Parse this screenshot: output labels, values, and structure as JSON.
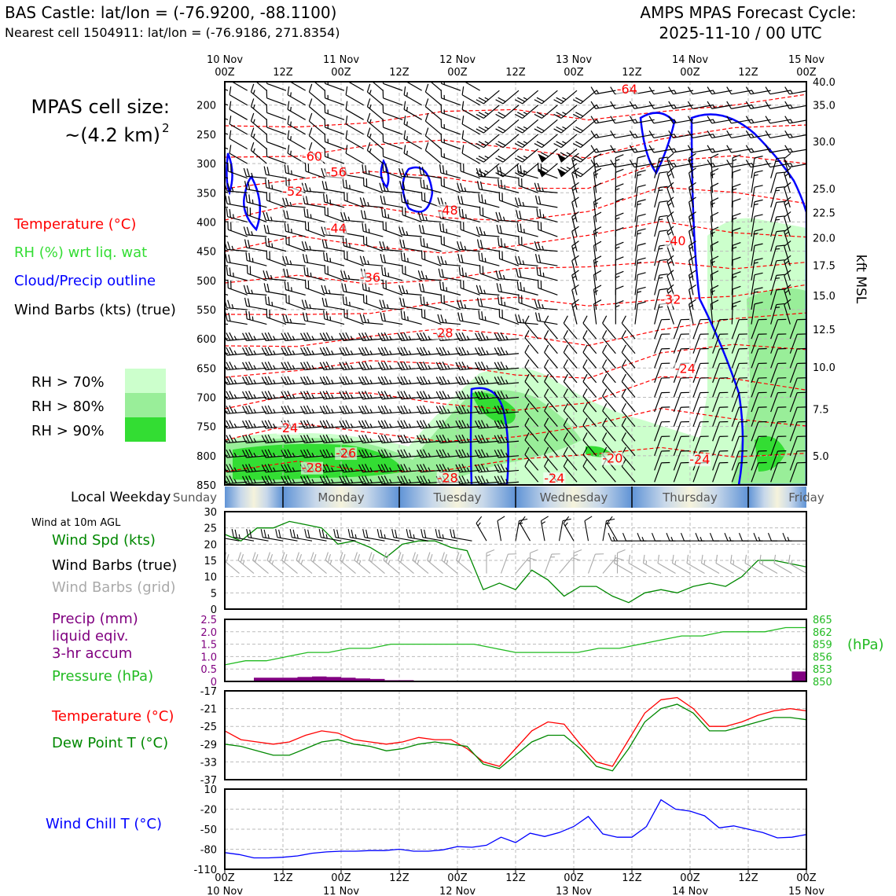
{
  "header": {
    "station": "BAS Castle: lat/lon = (-76.9200, -88.1100)",
    "nearest_cell": "Nearest cell 1504911: lat/lon = (-76.9186, 271.8354)",
    "cycle_title": "AMPS MPAS Forecast Cycle:",
    "cycle_time": "2025-11-10 / 00 UTC"
  },
  "cell_size": {
    "label": "MPAS cell size:",
    "value": "~(4.2 km)",
    "exponent": "2"
  },
  "legend": {
    "temperature": "Temperature (°C)",
    "rh": "RH (%) wrt liq. wat",
    "cloud": "Cloud/Precip outline",
    "barbs": "Wind Barbs (kts) (true)",
    "rh70": "RH > 70%",
    "rh80": "RH > 80%",
    "rh90": "RH > 90%"
  },
  "colors": {
    "temp": "#ff0000",
    "cloud": "#0000ff",
    "rh_label": "#33dd33",
    "rh70": "#ccffcc",
    "rh80": "#99ee99",
    "rh90": "#33dd33",
    "wind_speed": "#008800",
    "precip": "#800080",
    "pressure": "#22bb22",
    "dewpoint": "#008800",
    "windchill": "#0000ff",
    "grid_barb": "#aaaaaa"
  },
  "time_axis": {
    "top_labels": [
      {
        "line1": "10 Nov",
        "line2": "00Z"
      },
      {
        "line1": "",
        "line2": "12Z"
      },
      {
        "line1": "11 Nov",
        "line2": "00Z"
      },
      {
        "line1": "",
        "line2": "12Z"
      },
      {
        "line1": "12 Nov",
        "line2": "00Z"
      },
      {
        "line1": "",
        "line2": "12Z"
      },
      {
        "line1": "13 Nov",
        "line2": "00Z"
      },
      {
        "line1": "",
        "line2": "12Z"
      },
      {
        "line1": "14 Nov",
        "line2": "00Z"
      },
      {
        "line1": "",
        "line2": "12Z"
      },
      {
        "line1": "15 Nov",
        "line2": "00Z"
      }
    ],
    "hours": [
      0,
      12,
      24,
      36,
      48,
      60,
      72,
      84,
      96,
      108,
      120
    ]
  },
  "weekday": {
    "label": "Local Weekday",
    "days": [
      "Sunday",
      "Monday",
      "Tuesday",
      "Wednesday",
      "Thursday",
      "Friday"
    ]
  },
  "chart_data": [
    {
      "type": "line",
      "title": "Vertical cross-section (pressure levels)",
      "ylabel_left": "hPa",
      "ylabel_right": "kft MSL",
      "left_ticks": [
        200,
        250,
        300,
        350,
        400,
        450,
        500,
        550,
        600,
        650,
        700,
        750,
        800,
        850
      ],
      "right_ticks": [
        "40.0",
        "35.0",
        "30.0",
        "25.0",
        "22.5",
        "20.0",
        "17.5",
        "15.0",
        "12.5",
        "10.0",
        "7.5",
        "5.0"
      ],
      "right_ticks_hpa": [
        160,
        200,
        262,
        343,
        384,
        427,
        474,
        526,
        584,
        648,
        720,
        800
      ],
      "ylim": [
        160,
        850
      ],
      "temp_labels": [
        {
          "text": "-64",
          "t": 83,
          "p": 180
        },
        {
          "text": "-60",
          "t": 18,
          "p": 295
        },
        {
          "text": "-56",
          "t": 23,
          "p": 322
        },
        {
          "text": "-52",
          "t": 14,
          "p": 355
        },
        {
          "text": "-48",
          "t": 46,
          "p": 387
        },
        {
          "text": "-44",
          "t": 23,
          "p": 418
        },
        {
          "text": "-40",
          "t": 93,
          "p": 440
        },
        {
          "text": "-36",
          "t": 30,
          "p": 502
        },
        {
          "text": "-32",
          "t": 92,
          "p": 540
        },
        {
          "text": "-28",
          "t": 45,
          "p": 597
        },
        {
          "text": "-24",
          "t": 95,
          "p": 658
        },
        {
          "text": "-24",
          "t": 13,
          "p": 760
        },
        {
          "text": "-20",
          "t": 80,
          "p": 812
        },
        {
          "text": "-24",
          "t": 98,
          "p": 814
        },
        {
          "text": "-26",
          "t": 25,
          "p": 803
        },
        {
          "text": "-28",
          "t": 18,
          "p": 828
        },
        {
          "text": "-28",
          "t": 46,
          "p": 845
        },
        {
          "text": "-24",
          "t": 68,
          "p": 846
        }
      ],
      "barb_levels": [
        175,
        200,
        225,
        250,
        275,
        300,
        325,
        350,
        375,
        400,
        425,
        450,
        475,
        500,
        525,
        550,
        575,
        600,
        625,
        650,
        675,
        700,
        725,
        750,
        775,
        800,
        825,
        845
      ],
      "barb_times": [
        0,
        4,
        8,
        12,
        16,
        20,
        24,
        28,
        32,
        36,
        40,
        44,
        48,
        52,
        56,
        60,
        64,
        68,
        72,
        76,
        80,
        84,
        88,
        92,
        96,
        100,
        104,
        108,
        112,
        116,
        120
      ]
    },
    {
      "type": "line",
      "title": "Wind at 10m AGL",
      "series": [
        {
          "name": "Wind Spd (kts)",
          "values": [
            23,
            21,
            25,
            25,
            27,
            26,
            25,
            20,
            21,
            19,
            16,
            20,
            21,
            21,
            19,
            18,
            6,
            8,
            6,
            12,
            9,
            4,
            7,
            7,
            4,
            2,
            5,
            6,
            5,
            7,
            8,
            7,
            10,
            15,
            15,
            14,
            13
          ]
        }
      ],
      "x_step_hours": 3.33,
      "ylim": [
        0,
        30
      ],
      "yticks": [
        0,
        5,
        10,
        15,
        20,
        25,
        30
      ],
      "labels": {
        "spd": "Wind Spd (kts)",
        "barbs_true": "Wind Barbs (true)",
        "barbs_grid": "Wind Barbs (grid)",
        "title": "Wind at 10m AGL"
      }
    },
    {
      "type": "bar",
      "title": "Precip and Pressure",
      "precip_label": "Precip (mm)",
      "precip_label2": "liquid eqiv.",
      "precip_label3": "3-hr accum",
      "pressure_label": "Pressure (hPa)",
      "pressure_unit": "(hPa)",
      "precip_ylim": [
        0,
        2.5
      ],
      "precip_ticks": [
        "0",
        "0.5",
        "1.0",
        "1.5",
        "2.0",
        "2.5"
      ],
      "pressure_ylim": [
        850,
        865
      ],
      "pressure_ticks": [
        "850",
        "853",
        "856",
        "859",
        "862",
        "865"
      ],
      "precip": [
        0,
        0,
        0.15,
        0.15,
        0.15,
        0.18,
        0.2,
        0.18,
        0.15,
        0.12,
        0.1,
        0.05,
        0.05,
        0,
        0,
        0,
        0,
        0,
        0,
        0,
        0,
        0,
        0,
        0,
        0,
        0,
        0,
        0,
        0,
        0,
        0,
        0,
        0,
        0,
        0,
        0,
        0,
        0,
        0,
        0.4,
        0.3,
        0.2
      ],
      "pressure": [
        854,
        855,
        855,
        856,
        857,
        857,
        858,
        858,
        859,
        859,
        859,
        859,
        859,
        858,
        857,
        857,
        857,
        857,
        858,
        858,
        859,
        860,
        861,
        861,
        862,
        862,
        862,
        863,
        863
      ]
    },
    {
      "type": "line",
      "title": "Temperature and Dew Point",
      "series": [
        {
          "name": "Temperature (°C)",
          "values": [
            -26,
            -28,
            -28.5,
            -29,
            -28.5,
            -27,
            -26,
            -26.5,
            -28,
            -28.5,
            -29,
            -28.5,
            -27.5,
            -28,
            -28,
            -30,
            -33,
            -34,
            -30,
            -26,
            -24,
            -24.5,
            -29,
            -33,
            -34,
            -28,
            -22,
            -19,
            -18.5,
            -21,
            -25,
            -25,
            -24,
            -22.5,
            -21.5,
            -21,
            -21.5
          ]
        },
        {
          "name": "Dew Point T (°C)",
          "values": [
            -29,
            -29.5,
            -30.5,
            -31.5,
            -31.5,
            -30,
            -28.5,
            -28,
            -29,
            -29.5,
            -30.5,
            -30,
            -29,
            -28.5,
            -29,
            -29.5,
            -33.5,
            -34.5,
            -31.5,
            -28.5,
            -27,
            -27,
            -30,
            -34,
            -35,
            -30,
            -24,
            -21,
            -20,
            -22,
            -26,
            -26,
            -25,
            -24,
            -23,
            -23,
            -23.5
          ]
        }
      ],
      "ylim": [
        -37,
        -17
      ],
      "yticks": [
        -37,
        -33,
        -29,
        -25,
        -21,
        -17
      ]
    },
    {
      "type": "line",
      "title": "Wind Chill",
      "series": [
        {
          "name": "Wind Chill T (°C)",
          "values": [
            -85,
            -88,
            -93,
            -93,
            -92,
            -90,
            -86,
            -84,
            -83,
            -83,
            -82,
            -82,
            -80,
            -83,
            -83,
            -81,
            -76,
            -77,
            -74,
            -62,
            -70,
            -56,
            -61,
            -55,
            -46,
            -31,
            -57,
            -62,
            -62,
            -46,
            -6,
            -20,
            -23,
            -30,
            -48,
            -45,
            -50,
            -55,
            -63,
            -62,
            -58
          ]
        }
      ],
      "ylim": [
        -110,
        10
      ],
      "yticks": [
        "10",
        "-20",
        "-50",
        "-80",
        "-110"
      ],
      "label": "Wind Chill T (°C)"
    }
  ]
}
